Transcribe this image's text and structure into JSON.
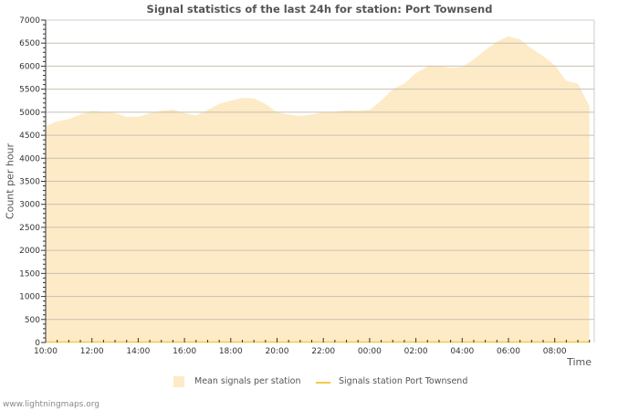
{
  "header": {
    "title": "Signal statistics of the last 24h for station: Port Townsend"
  },
  "axes": {
    "ylabel": "Count per hour",
    "xlabel": "Time"
  },
  "legend": {
    "items": [
      {
        "label": "Mean signals per station",
        "color": "#fdebc7",
        "kind": "area"
      },
      {
        "label": "Signals station Port Townsend",
        "color": "#f7c948",
        "kind": "line"
      }
    ]
  },
  "footer": {
    "credit": "www.lightningmaps.org"
  },
  "chart_data": {
    "type": "area",
    "title": "Signal statistics of the last 24h for station: Port Townsend",
    "xlabel": "Time",
    "ylabel": "Count per hour",
    "ylim": [
      0,
      7000
    ],
    "yticks": [
      0,
      500,
      1000,
      1500,
      2000,
      2500,
      3000,
      3500,
      4000,
      4500,
      5000,
      5500,
      6000,
      6500,
      7000
    ],
    "xticks": [
      "10:00",
      "12:00",
      "14:00",
      "16:00",
      "18:00",
      "20:00",
      "22:00",
      "00:00",
      "02:00",
      "04:00",
      "06:00",
      "08:00"
    ],
    "grid": true,
    "legend_position": "bottom",
    "x": [
      "10:00",
      "10:30",
      "11:00",
      "11:30",
      "12:00",
      "12:30",
      "13:00",
      "13:30",
      "14:00",
      "14:30",
      "15:00",
      "15:30",
      "16:00",
      "16:30",
      "17:00",
      "17:30",
      "18:00",
      "18:30",
      "19:00",
      "19:30",
      "20:00",
      "20:30",
      "21:00",
      "21:30",
      "22:00",
      "22:30",
      "23:00",
      "23:30",
      "00:00",
      "00:30",
      "01:00",
      "01:30",
      "02:00",
      "02:30",
      "03:00",
      "03:30",
      "04:00",
      "04:30",
      "05:00",
      "05:30",
      "06:00",
      "06:30",
      "07:00",
      "07:30",
      "08:00",
      "08:30",
      "09:00",
      "09:30"
    ],
    "series": [
      {
        "name": "Mean signals per station",
        "values": [
          4700,
          4800,
          4850,
          4950,
          5030,
          5010,
          4980,
          4900,
          4900,
          4980,
          5030,
          5060,
          4980,
          4930,
          5050,
          5180,
          5250,
          5310,
          5300,
          5180,
          5000,
          4950,
          4920,
          4950,
          5000,
          5010,
          5040,
          5030,
          5050,
          5250,
          5500,
          5620,
          5850,
          5990,
          6000,
          5960,
          5980,
          6150,
          6350,
          6530,
          6650,
          6580,
          6380,
          6220,
          6020,
          5680,
          5620,
          5130
        ]
      },
      {
        "name": "Signals station Port Townsend",
        "values": [
          0,
          0,
          0,
          0,
          0,
          0,
          0,
          0,
          0,
          0,
          0,
          0,
          0,
          0,
          0,
          0,
          0,
          0,
          0,
          0,
          0,
          0,
          0,
          0,
          0,
          0,
          0,
          0,
          0,
          0,
          0,
          0,
          0,
          0,
          0,
          0,
          0,
          0,
          0,
          0,
          0,
          0,
          0,
          0,
          0,
          0,
          0,
          0
        ]
      }
    ]
  }
}
